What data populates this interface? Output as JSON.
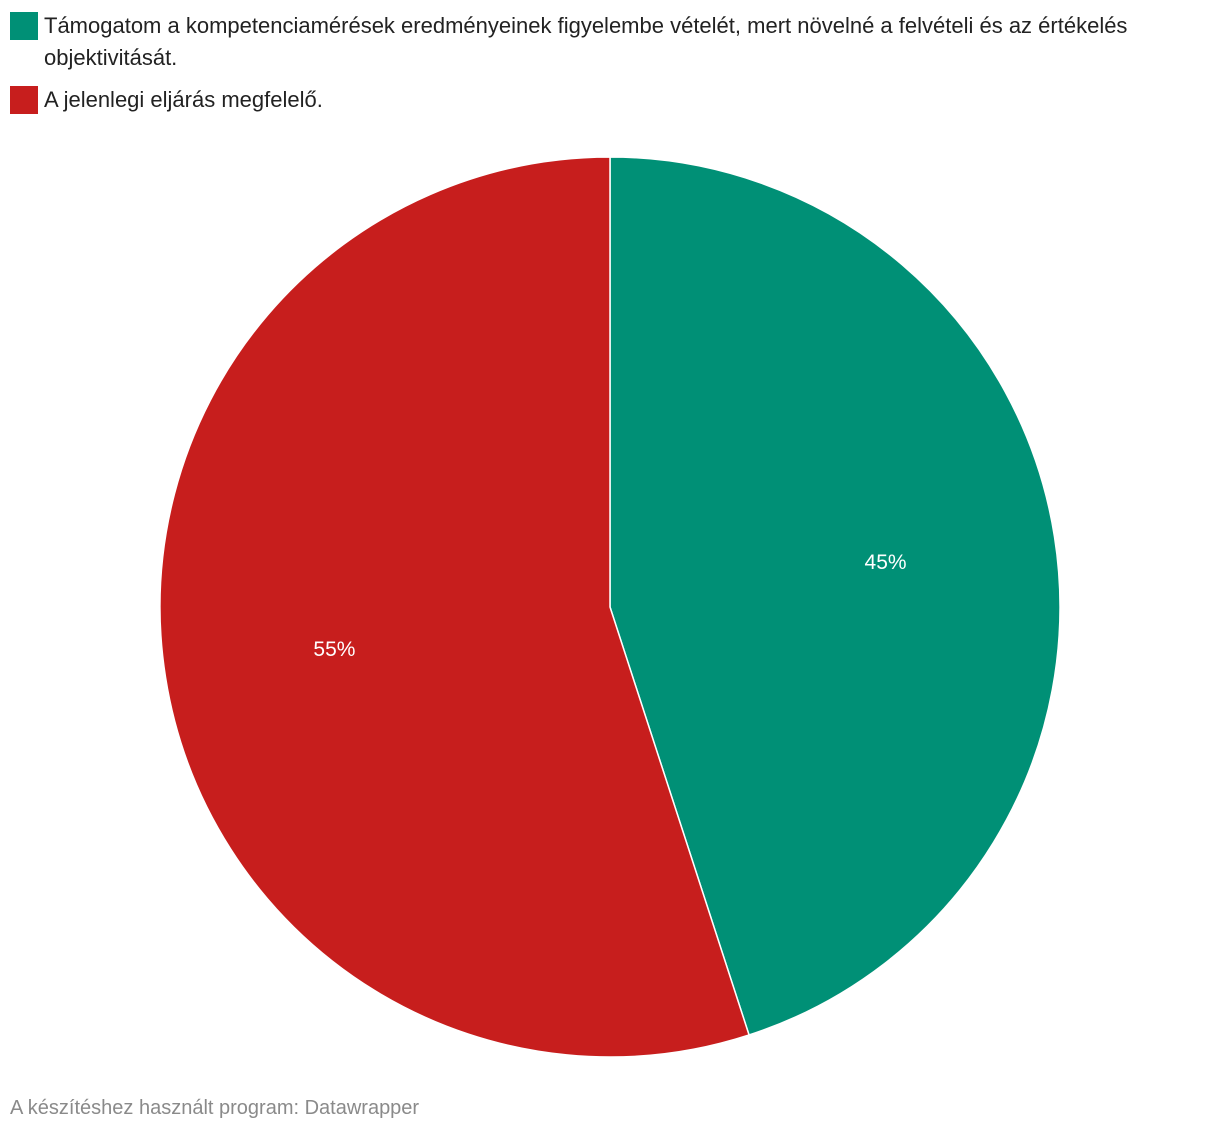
{
  "chart_data": {
    "type": "pie",
    "categories": [
      "Támogatom a kompetenciamérések eredményeinek figyelembe vételét, mert növelné a felvételi és az értékelés objektivitását.",
      "A jelenlegi eljárás megfelelő."
    ],
    "values": [
      45,
      55
    ],
    "value_labels": [
      "45%",
      "55%"
    ],
    "colors": [
      "#009076",
      "#c71e1d"
    ],
    "legend_position": "top-left",
    "start_angle": "12 o'clock",
    "direction": "clockwise"
  },
  "footer": {
    "credit": "A készítéshez használt program: Datawrapper"
  }
}
